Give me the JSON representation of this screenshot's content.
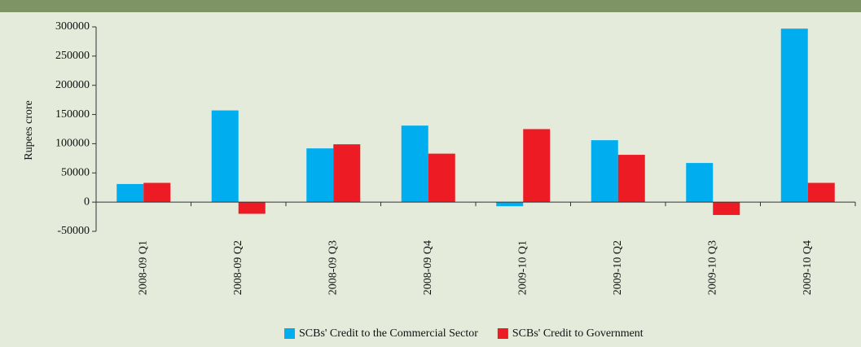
{
  "chart_data": {
    "type": "bar",
    "ylabel": "Rupees  crore",
    "categories": [
      "2008-09 Q1",
      "2008-09 Q2",
      "2008-09 Q3",
      "2008-09 Q4",
      "2009-10 Q1",
      "2009-10 Q2",
      "2009-10 Q3",
      "2009-10 Q4"
    ],
    "series": [
      {
        "name": "SCBs' Credit to the Commercial Sector",
        "color": "#00aeef",
        "values": [
          31000,
          157000,
          92000,
          131000,
          -7000,
          106000,
          67000,
          297000
        ]
      },
      {
        "name": "SCBs' Credit to Government",
        "color": "#ed1c24",
        "values": [
          33000,
          -20000,
          99000,
          83000,
          125000,
          81000,
          -22000,
          33000
        ]
      }
    ],
    "ylim": [
      -50000,
      300000
    ],
    "yticks": [
      -50000,
      0,
      50000,
      100000,
      150000,
      200000,
      250000,
      300000
    ],
    "legend": "bottom"
  }
}
